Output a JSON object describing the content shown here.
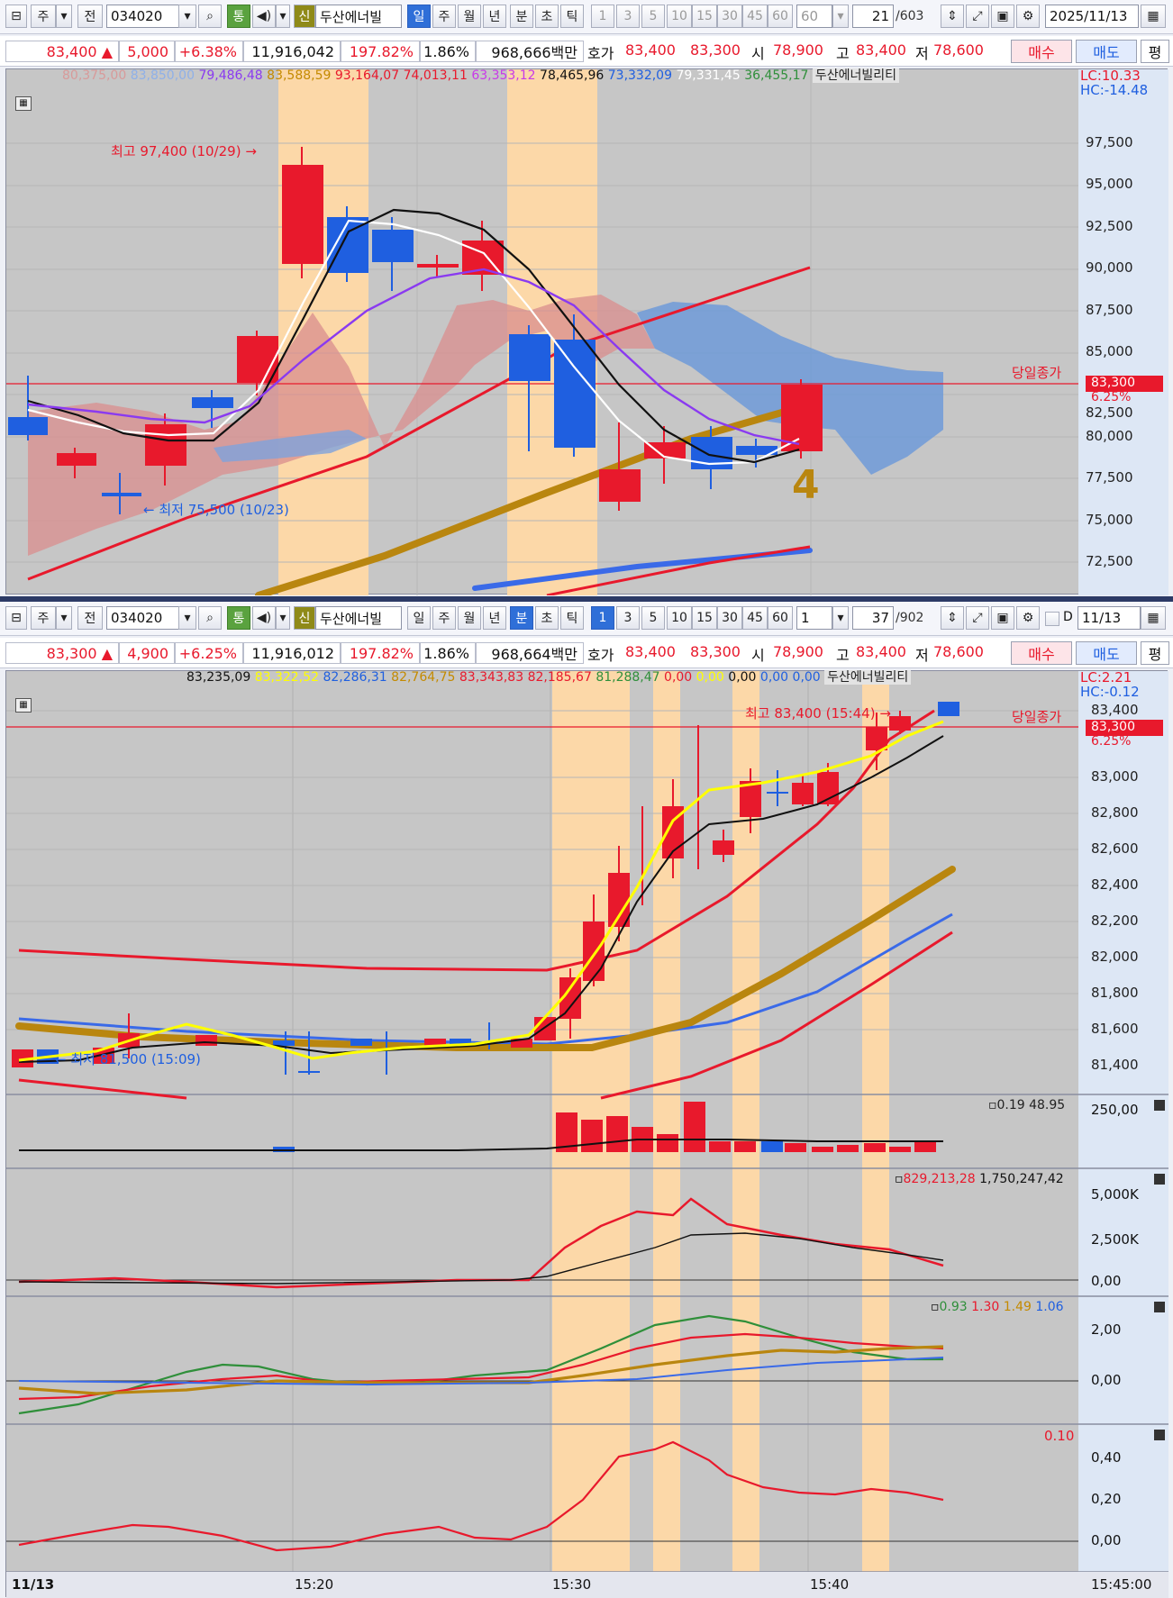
{
  "top": {
    "toolbar": {
      "type_btn": "주",
      "jeon_btn": "전",
      "code": "034020",
      "tong_btn": "통",
      "sin_btn": "신",
      "name": "두산에너빌",
      "periods": [
        "일",
        "주",
        "월",
        "년",
        "분",
        "초",
        "틱"
      ],
      "active_period": "일",
      "nums": [
        "1",
        "3",
        "5",
        "10",
        "15",
        "30",
        "45",
        "60"
      ],
      "count_val": "60",
      "count": "21",
      "total": "/603",
      "date": "2025/11/13"
    },
    "quote": {
      "price": "83,400",
      "arrow": "▲",
      "change": "5,000",
      "pct": "+6.38%",
      "volume": "11,916,042",
      "vol_ratio": "197.82%",
      "turnover": "1.86%",
      "amount": "968,666백만",
      "hoga_label": "호가",
      "ask": "83,400",
      "bid": "83,300",
      "open_label": "시",
      "open": "78,900",
      "high_label": "고",
      "high": "83,400",
      "low_label": "저",
      "low": "78,600",
      "buy_btn": "매수",
      "sell_btn": "매도",
      "eval_btn": "평"
    },
    "legend": [
      "80,375,00",
      "83,850,00",
      "79,486,48",
      "83,588,59",
      "93,164,07",
      "74,013,11",
      "63,353,12",
      "78,465,96",
      "73,332,09",
      "79,331,45",
      "36,455,17"
    ],
    "legend_colors": [
      "#d89a9a",
      "#8fb0e8",
      "#8a3af0",
      "#c48a00",
      "#e8192c",
      "#e8192c",
      "#c83ae8",
      "#111111",
      "#1f5fe0",
      "#ffffff",
      "#2f8f3a"
    ],
    "legend_name": "두산에너빌리티",
    "lc": "LC:10.33",
    "hc": "HC:-14.48",
    "high_note": "최고 97,400 (10/29)",
    "low_note": "최저 75,500 (10/23)",
    "close_label": "당일종가",
    "close_price": "83,300",
    "close_pct": "6.25%",
    "wave_num": "4",
    "axis_ticks": [
      "97,500",
      "95,000",
      "92,500",
      "90,000",
      "87,500",
      "85,000",
      "82,500",
      "80,000",
      "77,500",
      "75,000",
      "72,500"
    ]
  },
  "bottom": {
    "toolbar": {
      "type_btn": "주",
      "jeon_btn": "전",
      "code": "034020",
      "tong_btn": "통",
      "sin_btn": "신",
      "name": "두산에너빌",
      "periods": [
        "일",
        "주",
        "월",
        "년",
        "분",
        "초",
        "틱"
      ],
      "active_period": "분",
      "nums": [
        "1",
        "3",
        "5",
        "10",
        "15",
        "30",
        "45",
        "60"
      ],
      "active_num": "1",
      "count_val": "1",
      "count": "37",
      "total": "/902",
      "d_label": "D",
      "date": "11/13"
    },
    "quote": {
      "price": "83,300",
      "arrow": "▲",
      "change": "4,900",
      "pct": "+6.25%",
      "volume": "11,916,012",
      "vol_ratio": "197.82%",
      "turnover": "1.86%",
      "amount": "968,664백만",
      "hoga_label": "호가",
      "ask": "83,400",
      "bid": "83,300",
      "open_label": "시",
      "open": "78,900",
      "high_label": "고",
      "high": "83,400",
      "low_label": "저",
      "low": "78,600",
      "buy_btn": "매수",
      "sell_btn": "매도",
      "eval_btn": "평"
    },
    "legend": [
      "83,235,09",
      "83,322,52",
      "82,286,31",
      "82,764,75",
      "83,343,83",
      "82,185,67",
      "81,288,47",
      "0,00",
      "0,00",
      "0,00",
      "0,00",
      "0,00"
    ],
    "legend_colors": [
      "#111111",
      "#ffff00",
      "#1f5fe0",
      "#c48a00",
      "#e8192c",
      "#e8192c",
      "#2f8f3a",
      "#e8192c",
      "#ffff00",
      "#111111",
      "#1f5fe0",
      "#1f5fe0"
    ],
    "legend_name": "두산에너빌리티",
    "lc": "LC:2.21",
    "hc": "HC:-0.12",
    "high_note": "최고 83,400 (15:44)",
    "low_note": "최저 81,500 (15:09)",
    "close_label": "당일종가",
    "close_price": "83,300",
    "close_pct": "6.25%",
    "axis_ticks": [
      "83,400",
      "83,000",
      "82,800",
      "82,600",
      "82,400",
      "82,200",
      "82,000",
      "81,800",
      "81,600",
      "81,400"
    ],
    "vol_vals": "0.19 48.95",
    "vol_ticks": [
      "250,00"
    ],
    "p3_vals": [
      "829,213,28",
      "1,750,247,42"
    ],
    "p3_ticks": [
      "5,000K",
      "2,500K",
      "0,00"
    ],
    "p4_vals": [
      "0.93",
      "1.30",
      "1.49",
      "1.06"
    ],
    "p4_colors": [
      "#2f8f3a",
      "#e8192c",
      "#c48a00",
      "#1f5fe0"
    ],
    "p4_ticks": [
      "2,00",
      "0,00"
    ],
    "p5_val": "0.10",
    "p5_ticks": [
      "0,40",
      "0,20",
      "0,00"
    ],
    "time_labels": [
      "11/13",
      "15:20",
      "15:30",
      "15:40",
      "15:45:00"
    ]
  }
}
